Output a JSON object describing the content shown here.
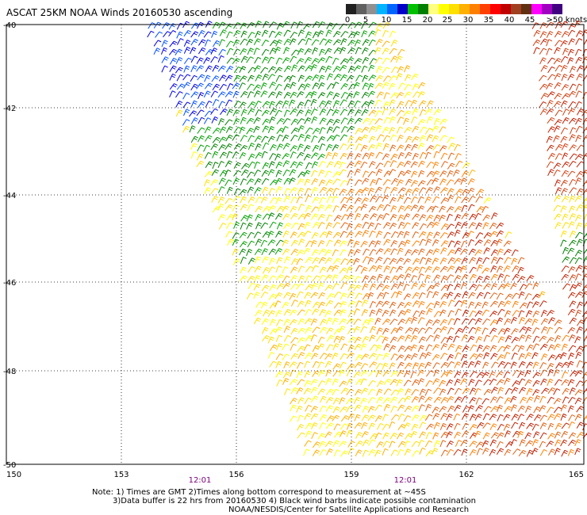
{
  "title": "ASCAT 25KM NOAA Winds 20160530 ascending",
  "legend": {
    "labels": [
      "0",
      "5",
      "10",
      "15",
      "20",
      "25",
      "30",
      "35",
      "40",
      "45",
      ">50 knots"
    ],
    "colors": [
      "#202020",
      "#606060",
      "#909090",
      "#00b4ff",
      "#0064ff",
      "#0000c8",
      "#00c000",
      "#008000",
      "#ffff80",
      "#ffff00",
      "#ffe000",
      "#ffb000",
      "#ff8000",
      "#ff4000",
      "#ff0000",
      "#c00000",
      "#a04020",
      "#603010",
      "#ff00ff",
      "#a000c0",
      "#400080"
    ]
  },
  "axes": {
    "lon_ticks": [
      "150",
      "153",
      "156",
      "159",
      "162",
      "165"
    ],
    "lat_ticks": [
      "-40",
      "-42",
      "-44",
      "-46",
      "-48",
      "-50"
    ]
  },
  "time_labels": [
    "12:01",
    "12:01"
  ],
  "notes": {
    "line1": "Note: 1) Times are GMT 2)Times along bottom correspond to measurement at ~45S",
    "line2": "3)Data buffer is 22 hrs from 20160530 4) Black wind barbs indicate possible contamination",
    "line3": "NOAA/NESDIS/Center for Satellite Applications and Research"
  }
}
